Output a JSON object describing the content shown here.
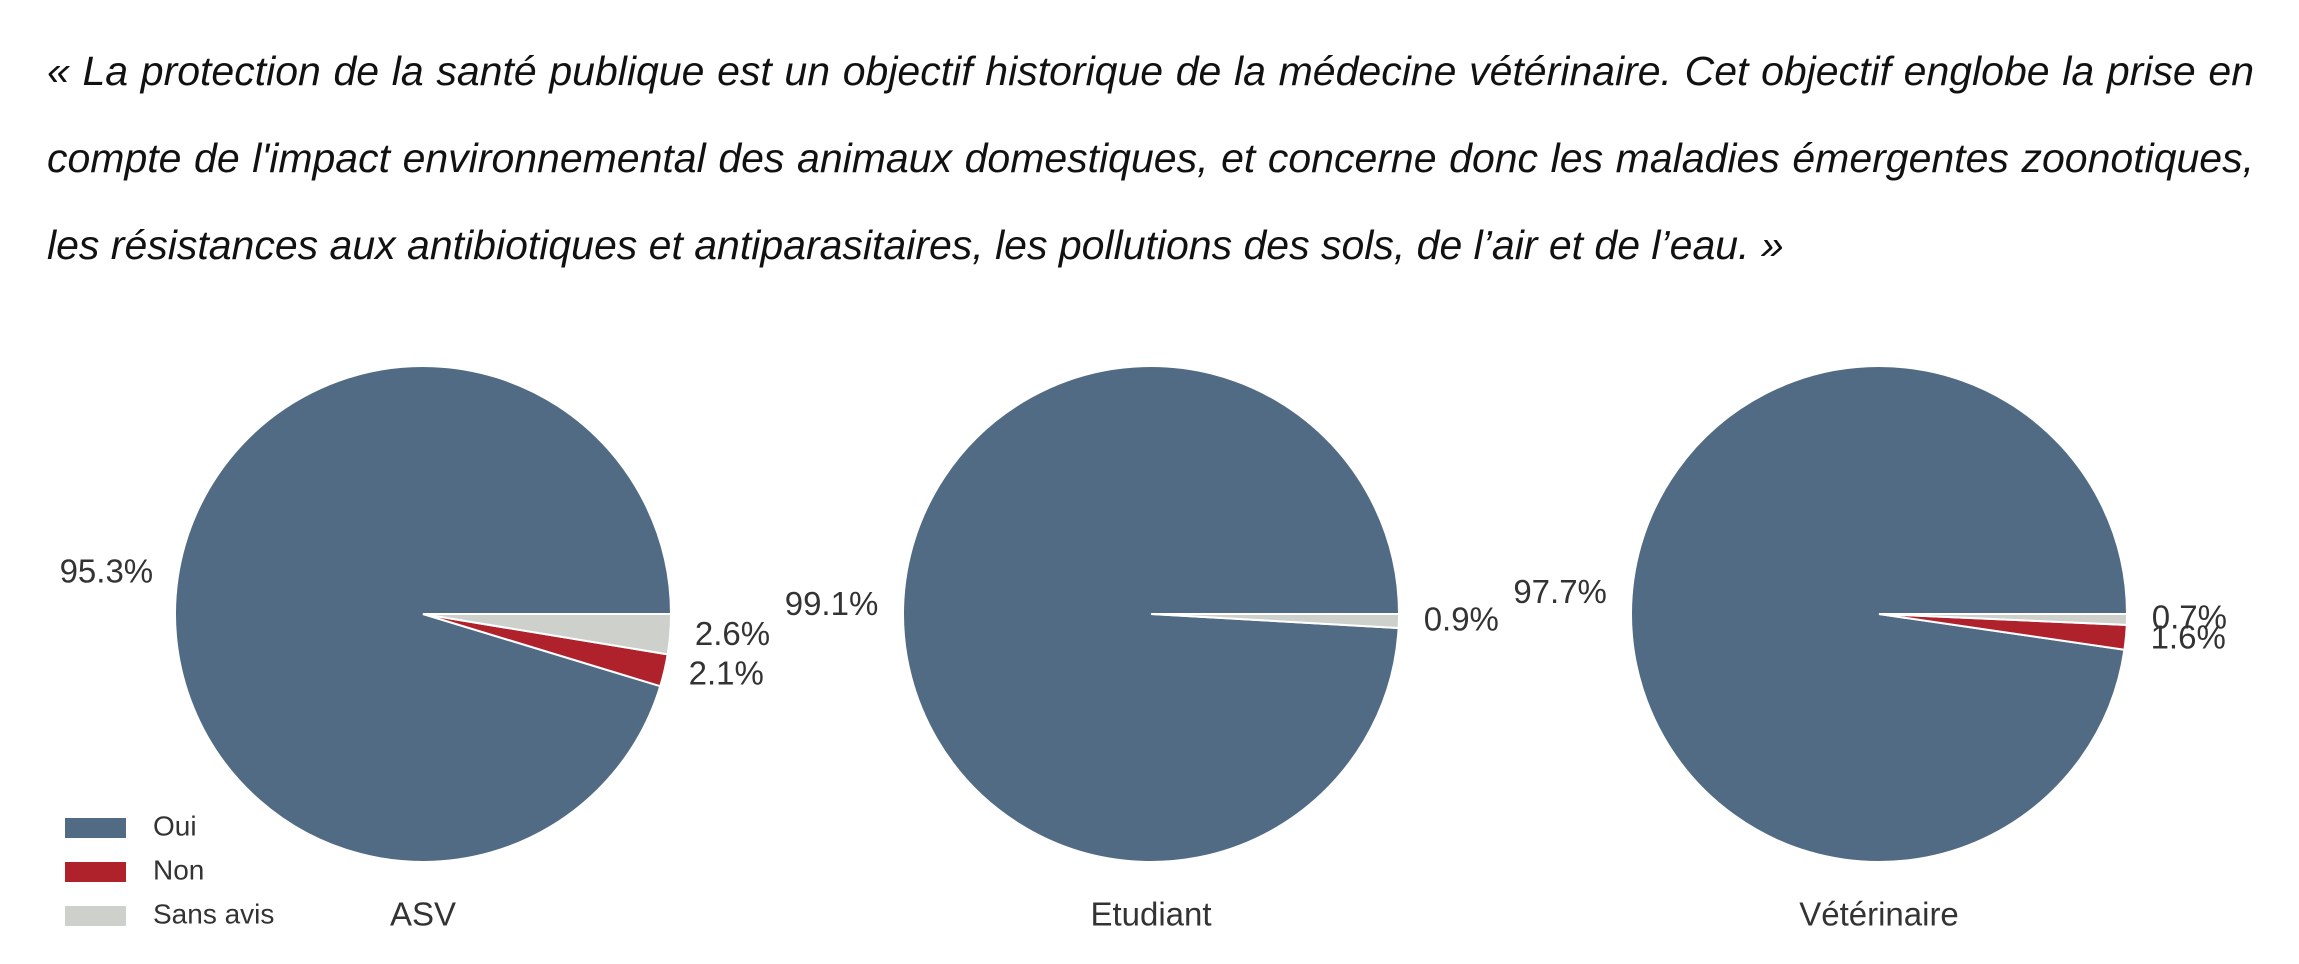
{
  "quote": "« La protection de la santé publique est un objectif historique de la médecine vétérinaire. Cet objectif englobe la prise en compte de l'impact environnemental des animaux domestiques, et concerne donc les maladies émergentes zoonotiques, les résistances aux antibiotiques et antiparasitaires, les pollutions des sols, de l’air et de l’eau. »",
  "chart_data": [
    {
      "type": "pie",
      "title": "ASV",
      "categories": [
        "Oui",
        "Non",
        "Sans avis"
      ],
      "values": [
        95.3,
        2.1,
        2.6
      ],
      "value_labels": [
        "95.3%",
        "2.1%",
        "2.6%"
      ],
      "colors": [
        "#516b85",
        "#b0222b",
        "#cdd0cb"
      ],
      "legend": "lower left"
    },
    {
      "type": "pie",
      "title": "Etudiant",
      "categories": [
        "Oui",
        "Sans avis"
      ],
      "values": [
        99.1,
        0.9
      ],
      "value_labels": [
        "99.1%",
        "0.9%"
      ],
      "colors": [
        "#516b85",
        "#cdd0cb"
      ]
    },
    {
      "type": "pie",
      "title": "Vétérinaire",
      "categories": [
        "Oui",
        "Non",
        "Sans avis"
      ],
      "values": [
        97.7,
        1.6,
        0.7
      ],
      "value_labels": [
        "97.7%",
        "1.6%",
        "0.7%"
      ],
      "colors": [
        "#516b85",
        "#b0222b",
        "#cdd0cb"
      ]
    }
  ]
}
